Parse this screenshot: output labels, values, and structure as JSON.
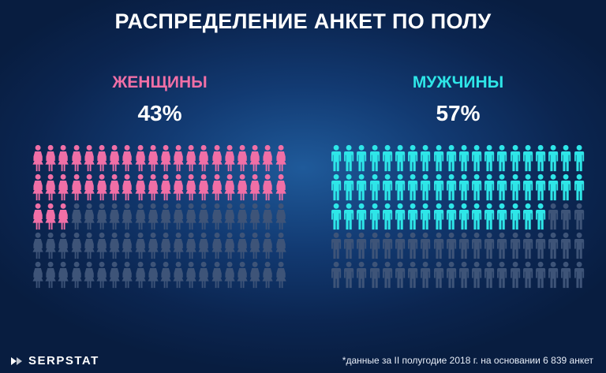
{
  "title": "РАСПРЕДЕЛЕНИЕ АНКЕТ ПО ПОЛУ",
  "chart_data": {
    "type": "pictogram",
    "title": "РАСПРЕДЕЛЕНИЕ АНКЕТ ПО ПОЛУ",
    "categories": [
      "ЖЕНЩИНЫ",
      "МУЖЧИНЫ"
    ],
    "values": [
      43,
      57
    ],
    "value_labels": [
      "43%",
      "57%"
    ],
    "icons_per_group": 100,
    "colors": {
      "women": "#f06fa6",
      "men": "#2ee6e8",
      "inactive": "#3e5478"
    }
  },
  "footer": {
    "logo": "SERPSTAT",
    "note": "*данные за II полугодие 2018 г. на основании 6 839 анкет"
  }
}
